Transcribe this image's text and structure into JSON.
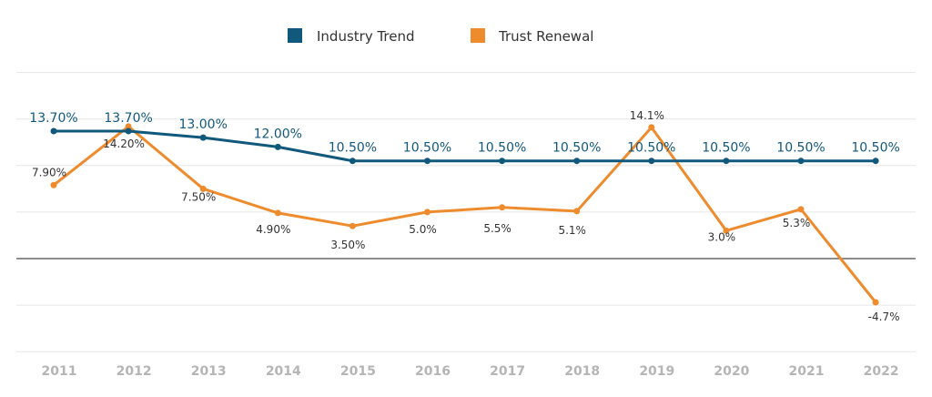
{
  "chart_data": {
    "type": "line",
    "title": "",
    "xlabel": "",
    "ylabel": "",
    "categories": [
      "2011",
      "2012",
      "2013",
      "2014",
      "2015",
      "2016",
      "2017",
      "2018",
      "2019",
      "2020",
      "2021",
      "2022"
    ],
    "ylim": [
      -10,
      20
    ],
    "grid": true,
    "legend": "top-center",
    "series": [
      {
        "name": "Industry Trend",
        "color": "#11587d",
        "values": [
          13.7,
          13.7,
          13.0,
          12.0,
          10.5,
          10.5,
          10.5,
          10.5,
          10.5,
          10.5,
          10.5,
          10.5
        ],
        "labels": [
          "13.70%",
          "13.70%",
          "13.00%",
          "12.00%",
          "10.50%",
          "10.50%",
          "10.50%",
          "10.50%",
          "10.50%",
          "10.50%",
          "10.50%",
          "10.50%"
        ]
      },
      {
        "name": "Trust Renewal",
        "color": "#ee8b2d",
        "values": [
          7.9,
          14.2,
          7.5,
          4.9,
          3.5,
          5.0,
          5.5,
          5.1,
          14.1,
          3.0,
          5.3,
          -4.7
        ],
        "labels": [
          "7.90%",
          "14.20%",
          "7.50%",
          "4.90%",
          "3.50%",
          "5.0%",
          "5.5%",
          "5.1%",
          "14.1%",
          "3.0%",
          "5.3%",
          "-4.7%"
        ]
      }
    ]
  }
}
